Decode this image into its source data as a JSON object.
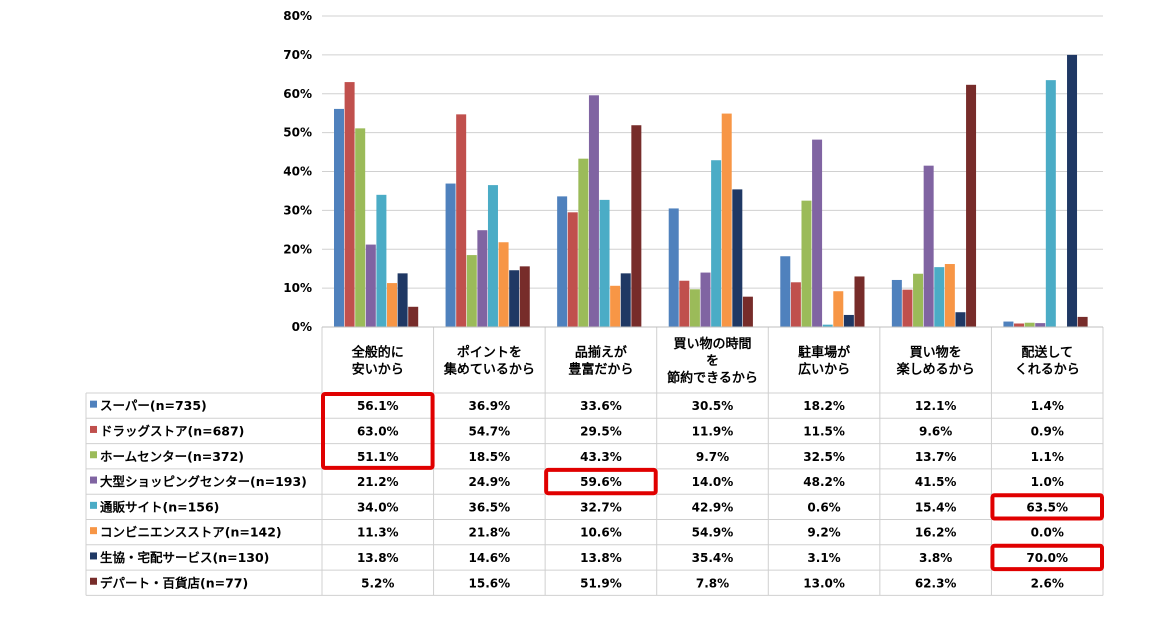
{
  "chart_data": {
    "type": "bar",
    "ylim": [
      0,
      80
    ],
    "yticks": [
      "0%",
      "10%",
      "20%",
      "30%",
      "40%",
      "50%",
      "60%",
      "70%",
      "80%"
    ],
    "categories": [
      [
        "全般的に",
        "安いから"
      ],
      [
        "ポイントを",
        "集めているから"
      ],
      [
        "品揃えが",
        "豊富だから"
      ],
      [
        "買い物の時間",
        "を",
        "節約できるから"
      ],
      [
        "駐車場が",
        "広いから"
      ],
      [
        "買い物を",
        "楽しめるから"
      ],
      [
        "配送して",
        "くれるから"
      ]
    ],
    "series": [
      {
        "name": "スーパー(n=735)",
        "color": "#4F81BD",
        "values": [
          56.1,
          36.9,
          33.6,
          30.5,
          18.2,
          12.1,
          1.4
        ],
        "labels": [
          "56.1%",
          "36.9%",
          "33.6%",
          "30.5%",
          "18.2%",
          "12.1%",
          "1.4%"
        ]
      },
      {
        "name": "ドラッグストア(n=687)",
        "color": "#C0504D",
        "values": [
          63.0,
          54.7,
          29.5,
          11.9,
          11.5,
          9.6,
          0.9
        ],
        "labels": [
          "63.0%",
          "54.7%",
          "29.5%",
          "11.9%",
          "11.5%",
          "9.6%",
          "0.9%"
        ]
      },
      {
        "name": "ホームセンター(n=372)",
        "color": "#9BBB59",
        "values": [
          51.1,
          18.5,
          43.3,
          9.7,
          32.5,
          13.7,
          1.1
        ],
        "labels": [
          "51.1%",
          "18.5%",
          "43.3%",
          "9.7%",
          "32.5%",
          "13.7%",
          "1.1%"
        ]
      },
      {
        "name": "大型ショッピングセンター(n=193)",
        "color": "#8064A2",
        "values": [
          21.2,
          24.9,
          59.6,
          14.0,
          48.2,
          41.5,
          1.0
        ],
        "labels": [
          "21.2%",
          "24.9%",
          "59.6%",
          "14.0%",
          "48.2%",
          "41.5%",
          "1.0%"
        ]
      },
      {
        "name": "通販サイト(n=156)",
        "color": "#4BACC6",
        "values": [
          34.0,
          36.5,
          32.7,
          42.9,
          0.6,
          15.4,
          63.5
        ],
        "labels": [
          "34.0%",
          "36.5%",
          "32.7%",
          "42.9%",
          "0.6%",
          "15.4%",
          "63.5%"
        ]
      },
      {
        "name": "コンビニエンスストア(n=142)",
        "color": "#F79646",
        "values": [
          11.3,
          21.8,
          10.6,
          54.9,
          9.2,
          16.2,
          0.0
        ],
        "labels": [
          "11.3%",
          "21.8%",
          "10.6%",
          "54.9%",
          "9.2%",
          "16.2%",
          "0.0%"
        ]
      },
      {
        "name": "生協・宅配サービス(n=130)",
        "color": "#1F3864",
        "values": [
          13.8,
          14.6,
          13.8,
          35.4,
          3.1,
          3.8,
          70.0
        ],
        "labels": [
          "13.8%",
          "14.6%",
          "13.8%",
          "35.4%",
          "3.1%",
          "3.8%",
          "70.0%"
        ]
      },
      {
        "name": "デパート・百貨店(n=77)",
        "color": "#772C2A",
        "values": [
          5.2,
          15.6,
          51.9,
          7.8,
          13.0,
          62.3,
          2.6
        ],
        "labels": [
          "5.2%",
          "15.6%",
          "51.9%",
          "7.8%",
          "13.0%",
          "62.3%",
          "2.6%"
        ]
      }
    ],
    "highlights": [
      {
        "series": [
          0,
          2
        ],
        "category": 0
      },
      {
        "series": [
          3,
          3
        ],
        "category": 2
      },
      {
        "series": [
          4,
          4
        ],
        "category": 6
      },
      {
        "series": [
          6,
          6
        ],
        "category": 6
      }
    ],
    "highlight_color": "#E00000",
    "grid": true
  }
}
